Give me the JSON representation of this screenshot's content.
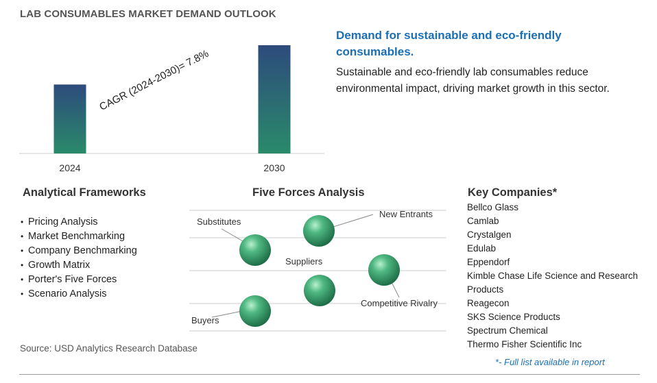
{
  "title": "LAB CONSUMABLES MARKET DEMAND OUTLOOK",
  "chart_data": {
    "type": "bar",
    "categories": [
      "2024",
      "2030"
    ],
    "values": [
      1.0,
      1.57
    ],
    "annotation": "CAGR (2024-2030)=  7.8%"
  },
  "headline": "Demand for sustainable and eco-friendly consumables.",
  "description": "Sustainable and eco-friendly lab consumables reduce environmental impact, driving market growth in this sector.",
  "analytical_frameworks": {
    "title": "Analytical Frameworks",
    "items": [
      "Pricing Analysis",
      "Market Benchmarking",
      "Company Benchmarking",
      "Growth Matrix",
      "Porter's Five Forces",
      "Scenario Analysis"
    ]
  },
  "five_forces": {
    "title": "Five Forces Analysis",
    "labels": {
      "substitutes": "Substitutes",
      "new_entrants": "New Entrants",
      "suppliers": "Suppliers",
      "competitive_rivalry": "Competitive Rivalry",
      "buyers": "Buyers"
    }
  },
  "key_companies": {
    "title": "Key Companies*",
    "items": [
      "Bellco Glass",
      "Camlab",
      "Crystalgen",
      "Edulab",
      "Eppendorf",
      "Kimble Chase Life Science and Research Products",
      "Reagecon",
      "SKS Science Products",
      "Spectrum Chemical",
      "Thermo Fisher Scientific Inc"
    ],
    "note": "*- Full list available in report"
  },
  "source": "Source: USD Analytics Research Database",
  "colors": {
    "bar_top": "#2b4f7a",
    "bar_bottom": "#2a8a6a",
    "accent": "#1a6fb5",
    "sphere": "#2e8b57"
  }
}
